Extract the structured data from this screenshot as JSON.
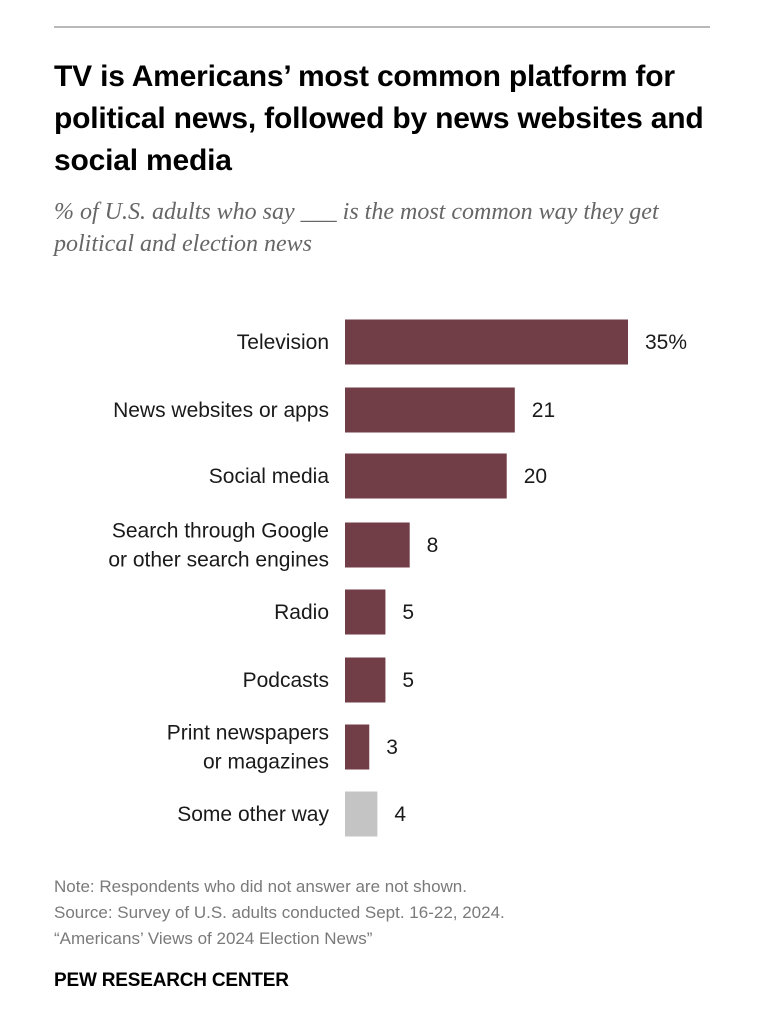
{
  "header": {
    "title": "TV is Americans’ most common platform for political news, followed by news websites and social media",
    "subtitle": "% of U.S. adults who say ___ is the most common way they get political and election news"
  },
  "chart_data": {
    "type": "bar",
    "orientation": "horizontal",
    "categories": [
      [
        "Television"
      ],
      [
        "News websites or apps"
      ],
      [
        "Social media"
      ],
      [
        "Search through Google",
        "or other search engines"
      ],
      [
        "Radio"
      ],
      [
        "Podcasts"
      ],
      [
        "Print newspapers",
        "or magazines"
      ],
      [
        "Some other way"
      ]
    ],
    "values": [
      35,
      21,
      20,
      8,
      5,
      5,
      3,
      4
    ],
    "value_labels": [
      "35%",
      "21",
      "20",
      "8",
      "5",
      "5",
      "3",
      "4"
    ],
    "bar_colors": [
      "#713d46",
      "#713d46",
      "#713d46",
      "#713d46",
      "#713d46",
      "#713d46",
      "#713d46",
      "#c4c4c4"
    ],
    "grid": false,
    "legend": "none",
    "xlim": [
      0,
      35
    ]
  },
  "footer": {
    "note": "Note: Respondents who did not answer are not shown.",
    "source": "Source: Survey of U.S. adults conducted Sept. 16-22, 2024.",
    "report": "“Americans’ Views of 2024 Election News”",
    "brand": "PEW RESEARCH CENTER"
  }
}
